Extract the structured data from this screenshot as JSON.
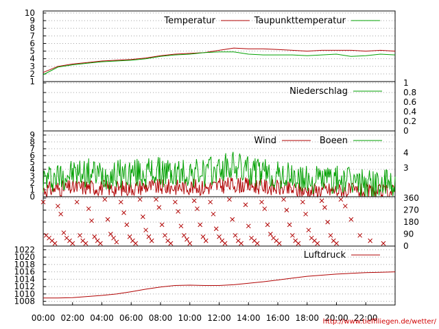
{
  "source_url": "http://www.tiefflliegen.de/wetter/",
  "x_ticks": [
    "00:00",
    "02:00",
    "04:00",
    "06:00",
    "08:00",
    "10:00",
    "12:00",
    "14:00",
    "16:00",
    "18:00",
    "20:00",
    "22:00"
  ],
  "colors": {
    "red": "#b00000",
    "green": "#00a000",
    "grid": "#a0a0a0",
    "axis": "#000000"
  },
  "chart_data": [
    {
      "type": "line",
      "panel": "temperature",
      "ylim": [
        1,
        10
      ],
      "y_ticks": [
        "1",
        "2",
        "3",
        "4",
        "5",
        "6",
        "7",
        "8",
        "9",
        "10"
      ],
      "legend_placement": "top-right",
      "x": [
        0,
        1,
        2,
        3,
        4,
        5,
        6,
        7,
        8,
        9,
        10,
        11,
        12,
        13,
        14,
        15,
        16,
        17,
        18,
        19,
        20,
        21,
        22,
        23,
        24
      ],
      "series": [
        {
          "name": "Temperatur",
          "color": "#b00000",
          "values": [
            2.2,
            3.0,
            3.3,
            3.5,
            3.7,
            3.8,
            3.9,
            4.1,
            4.4,
            4.6,
            4.7,
            4.8,
            5.1,
            5.4,
            5.3,
            5.3,
            5.2,
            5.1,
            5.0,
            5.1,
            5.1,
            5.1,
            5.0,
            5.1,
            5.0
          ]
        },
        {
          "name": "Taupunkttemperatur",
          "color": "#00a000",
          "values": [
            1.9,
            2.9,
            3.2,
            3.4,
            3.6,
            3.7,
            3.8,
            4.0,
            4.3,
            4.5,
            4.6,
            4.8,
            4.9,
            4.9,
            4.6,
            4.5,
            4.5,
            4.5,
            4.4,
            4.5,
            4.6,
            4.3,
            4.4,
            4.6,
            4.5
          ]
        }
      ]
    },
    {
      "type": "line",
      "panel": "precipitation",
      "ylim": [
        0,
        1
      ],
      "y_ticks": [
        "0",
        "0.2",
        "0.4",
        "0.6",
        "0.8",
        "1"
      ],
      "legend_placement": "top-right",
      "x": [
        0,
        24
      ],
      "series": [
        {
          "name": "Niederschlag",
          "color": "#00a000",
          "values": [
            0,
            0
          ]
        }
      ]
    },
    {
      "type": "line",
      "panel": "wind",
      "ylim": [
        0,
        10
      ],
      "y_ticks": [
        "0",
        "1",
        "2",
        "3",
        "4",
        "5",
        "6",
        "7",
        "8",
        "9"
      ],
      "right_ticks": [
        "3",
        "4"
      ],
      "legend_placement": "top-right",
      "x": [
        0,
        1,
        2,
        3,
        4,
        5,
        6,
        7,
        8,
        9,
        10,
        11,
        12,
        13,
        14,
        15,
        16,
        17,
        18,
        19,
        20,
        21,
        22,
        23,
        24
      ],
      "series": [
        {
          "name": "Wind",
          "color": "#b00000",
          "values": [
            1.0,
            1.2,
            1.3,
            1.4,
            1.3,
            1.2,
            1.3,
            1.5,
            1.4,
            1.4,
            1.5,
            1.3,
            1.6,
            1.8,
            1.6,
            1.5,
            1.3,
            1.0,
            0.8,
            1.0,
            0.9,
            0.8,
            0.7,
            0.6,
            0.7
          ]
        },
        {
          "name": "Boeen",
          "color": "#00a000",
          "values": [
            2.5,
            3.0,
            3.4,
            3.5,
            3.2,
            3.3,
            3.4,
            3.5,
            3.6,
            3.3,
            3.5,
            3.4,
            4.0,
            4.5,
            3.8,
            3.4,
            3.0,
            2.8,
            2.3,
            2.6,
            2.4,
            2.2,
            2.0,
            1.8,
            1.8
          ]
        }
      ]
    },
    {
      "type": "scatter",
      "panel": "wind_direction",
      "ylim": [
        0,
        360
      ],
      "y_ticks": [
        "0",
        "90",
        "180",
        "270",
        "360"
      ],
      "series": [
        {
          "name": "",
          "color": "#b00000",
          "values": [
            330,
            80,
            60,
            40,
            20,
            300,
            240,
            100,
            60,
            40,
            20,
            330,
            80,
            40,
            20,
            280,
            190,
            70,
            40,
            20,
            350,
            200,
            90,
            60,
            30,
            330,
            250,
            160,
            70,
            40,
            20,
            350,
            220,
            120,
            70,
            40,
            350,
            290,
            160,
            80,
            40,
            20,
            330,
            260,
            150,
            80,
            50,
            20,
            340,
            280,
            160,
            70,
            40,
            330,
            240,
            130,
            70,
            40,
            20,
            350,
            200,
            80,
            40,
            20,
            310,
            150,
            60,
            40,
            20,
            330,
            280,
            160,
            90,
            60,
            40,
            20,
            350,
            270,
            160,
            80,
            40,
            20,
            330,
            240,
            120,
            60,
            40,
            20,
            340,
            290,
            180,
            80,
            40,
            20,
            350,
            300,
            200,
            80,
            40,
            20
          ],
          "x": [
            0.0,
            0.2,
            0.4,
            0.6,
            0.8,
            1.0,
            1.2,
            1.4,
            1.6,
            1.8,
            2.0,
            2.3,
            2.5,
            2.7,
            2.9,
            3.1,
            3.3,
            3.5,
            3.7,
            3.9,
            4.2,
            4.4,
            4.6,
            4.8,
            5.0,
            5.3,
            5.5,
            5.7,
            5.9,
            6.1,
            6.3,
            6.6,
            6.8,
            7.0,
            7.2,
            7.4,
            7.7,
            7.9,
            8.1,
            8.3,
            8.5,
            8.7,
            9.0,
            9.2,
            9.4,
            9.6,
            9.8,
            10.0,
            10.3,
            10.5,
            10.7,
            10.9,
            11.1,
            11.4,
            11.6,
            11.8,
            12.0,
            12.2,
            12.4,
            12.7,
            12.9,
            13.1,
            13.3,
            13.5,
            13.8,
            14.0,
            14.2,
            14.4,
            14.6,
            14.9,
            15.1,
            15.3,
            15.5,
            15.7,
            15.9,
            16.1,
            16.4,
            16.6,
            16.8,
            17.0,
            17.2,
            17.4,
            17.7,
            17.9,
            18.1,
            18.3,
            18.5,
            18.7,
            19.0,
            19.2,
            19.4,
            19.6,
            19.8,
            20.0,
            20.3,
            20.6,
            21.0,
            21.6,
            22.3,
            23.2
          ]
        }
      ]
    },
    {
      "type": "line",
      "panel": "pressure",
      "ylim": [
        1007,
        1023
      ],
      "y_ticks": [
        "1008",
        "1010",
        "1012",
        "1014",
        "1016",
        "1018",
        "1020",
        "1022"
      ],
      "legend_placement": "top-right",
      "x": [
        0,
        1,
        2,
        3,
        4,
        5,
        6,
        7,
        8,
        9,
        10,
        11,
        12,
        13,
        14,
        15,
        16,
        17,
        18,
        19,
        20,
        21,
        22,
        23,
        24
      ],
      "series": [
        {
          "name": "Luftdruck",
          "color": "#b00000",
          "values": [
            1008.9,
            1008.9,
            1009.0,
            1009.3,
            1009.6,
            1010.0,
            1010.6,
            1011.3,
            1011.9,
            1012.3,
            1012.4,
            1012.3,
            1012.3,
            1012.5,
            1012.9,
            1013.3,
            1013.8,
            1014.3,
            1014.8,
            1015.1,
            1015.4,
            1015.6,
            1015.8,
            1015.9,
            1016.0
          ]
        }
      ]
    }
  ]
}
